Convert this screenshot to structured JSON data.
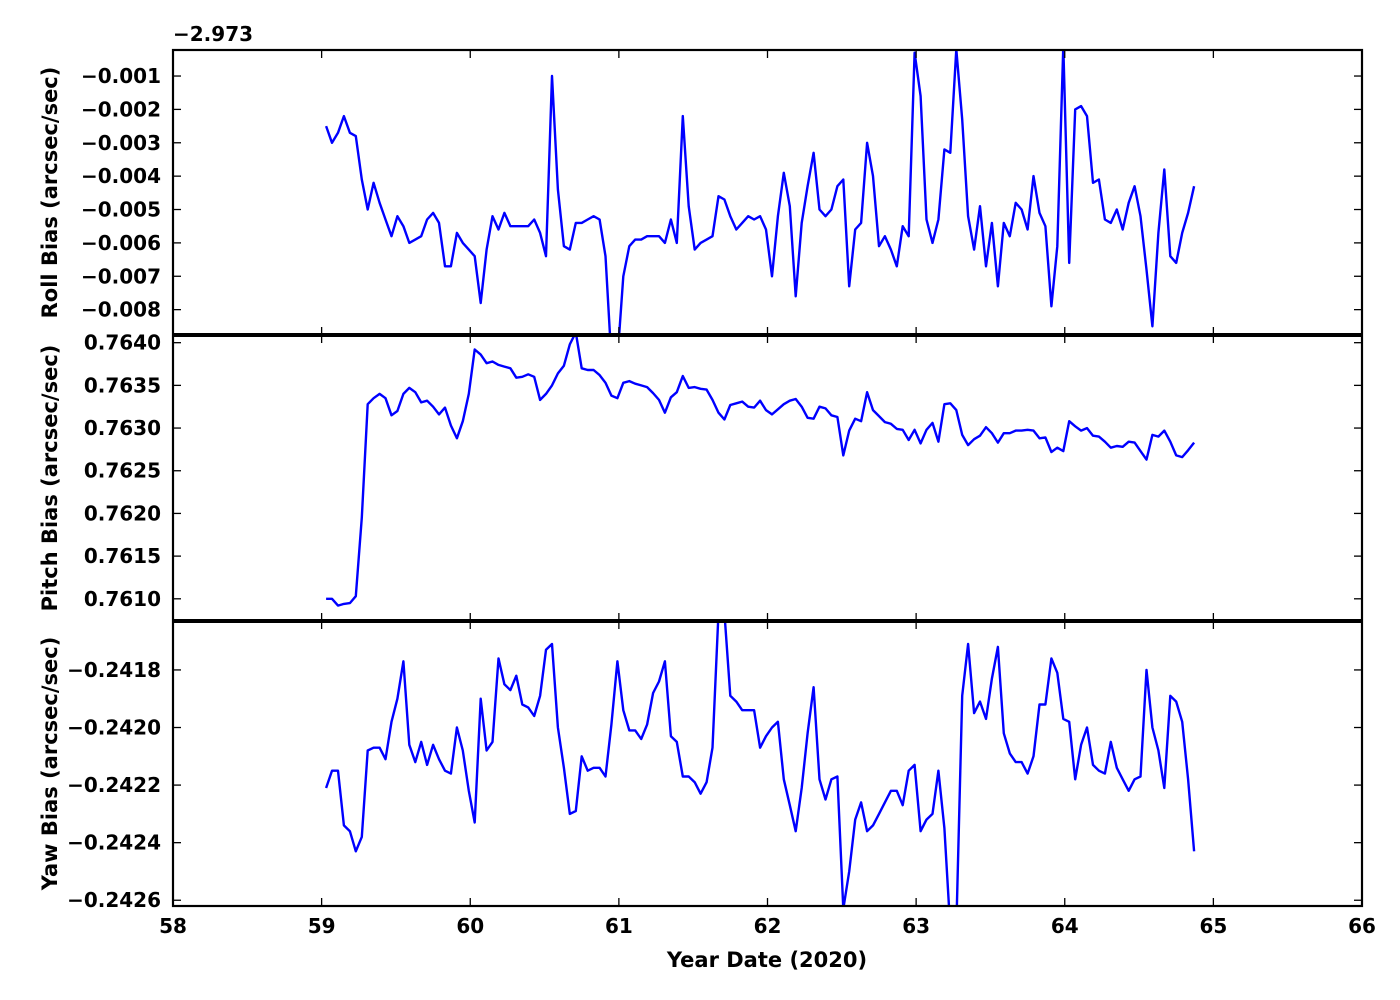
{
  "chart_data": {
    "type": "line",
    "layout": "stacked-panels-shared-x",
    "line_color": "#0000ff",
    "xlabel": "Year Date (2020)",
    "xlim": [
      58,
      66
    ],
    "xticks": [
      58,
      59,
      60,
      61,
      62,
      63,
      64,
      65,
      66
    ],
    "x": [
      59.03,
      59.07,
      59.11,
      59.15,
      59.19,
      59.23,
      59.27,
      59.31,
      59.35,
      59.39,
      59.43,
      59.47,
      59.51,
      59.55,
      59.59,
      59.63,
      59.67,
      59.71,
      59.75,
      59.79,
      59.83,
      59.87,
      59.91,
      59.95,
      59.99,
      60.03,
      60.07,
      60.11,
      60.15,
      60.19,
      60.23,
      60.27,
      60.31,
      60.35,
      60.39,
      60.43,
      60.47,
      60.51,
      60.55,
      60.59,
      60.63,
      60.67,
      60.71,
      60.75,
      60.79,
      60.83,
      60.87,
      60.91,
      60.95,
      60.99,
      61.03,
      61.07,
      61.11,
      61.15,
      61.19,
      61.23,
      61.27,
      61.31,
      61.35,
      61.39,
      61.43,
      61.47,
      61.51,
      61.55,
      61.59,
      61.63,
      61.67,
      61.71,
      61.75,
      61.79,
      61.83,
      61.87,
      61.91,
      61.95,
      61.99,
      62.03,
      62.07,
      62.11,
      62.15,
      62.19,
      62.23,
      62.27,
      62.31,
      62.35,
      62.39,
      62.43,
      62.47,
      62.51,
      62.55,
      62.59,
      62.63,
      62.67,
      62.71,
      62.75,
      62.79,
      62.83,
      62.87,
      62.91,
      62.95,
      62.99,
      63.03,
      63.07,
      63.11,
      63.15,
      63.19,
      63.23,
      63.27,
      63.31,
      63.35,
      63.39,
      63.43,
      63.47,
      63.51,
      63.55,
      63.59,
      63.63,
      63.67,
      63.71,
      63.75,
      63.79,
      63.83,
      63.87,
      63.91,
      63.95,
      63.99,
      64.03,
      64.07,
      64.11,
      64.15,
      64.19,
      64.23,
      64.27,
      64.31,
      64.35,
      64.39,
      64.43,
      64.47,
      64.51,
      64.55,
      64.59,
      64.63,
      64.67,
      64.71,
      64.75,
      64.79,
      64.83,
      64.87,
      64.91,
      64.95,
      64.99,
      65.03,
      65.07,
      65.11
    ],
    "panels": [
      {
        "name": "roll",
        "ylabel": "Roll Bias (arcsec/sec)",
        "offset_label": "−2.973",
        "ylim": [
          -0.00876,
          -0.00022
        ],
        "yticks": [
          -0.001,
          -0.002,
          -0.003,
          -0.004,
          -0.005,
          -0.006,
          -0.007,
          -0.008
        ],
        "ytick_labels": [
          "−0.001",
          "−0.002",
          "−0.003",
          "−0.004",
          "−0.005",
          "−0.006",
          "−0.007",
          "−0.008"
        ],
        "values": [
          -0.0025,
          -0.003,
          -0.0027,
          -0.0022,
          -0.0027,
          -0.0028,
          -0.0041,
          -0.005,
          -0.0042,
          -0.0048,
          -0.0053,
          -0.0058,
          -0.0052,
          -0.0055,
          -0.006,
          -0.0059,
          -0.0058,
          -0.0053,
          -0.0051,
          -0.0054,
          -0.0067,
          -0.0067,
          -0.0057,
          -0.006,
          -0.0062,
          -0.0064,
          -0.0078,
          -0.0062,
          -0.0052,
          -0.0056,
          -0.0051,
          -0.0055,
          -0.0055,
          -0.0055,
          -0.0055,
          -0.0053,
          -0.0057,
          -0.0064,
          -0.001,
          -0.0044,
          -0.0061,
          -0.0062,
          -0.0054,
          -0.0054,
          -0.0053,
          -0.0052,
          -0.0053,
          -0.0064,
          -0.0095,
          -0.0095,
          -0.007,
          -0.0061,
          -0.0059,
          -0.0059,
          -0.0058,
          -0.0058,
          -0.0058,
          -0.006,
          -0.0053,
          -0.006,
          -0.0022,
          -0.0049,
          -0.0062,
          -0.006,
          -0.0059,
          -0.0058,
          -0.0046,
          -0.0047,
          -0.0052,
          -0.0056,
          -0.0054,
          -0.0052,
          -0.0053,
          -0.0052,
          -0.0056,
          -0.007,
          -0.0052,
          -0.0039,
          -0.0049,
          -0.0076,
          -0.0054,
          -0.0043,
          -0.0033,
          -0.005,
          -0.0052,
          -0.005,
          -0.0043,
          -0.0041,
          -0.0073,
          -0.0056,
          -0.0054,
          -0.003,
          -0.004,
          -0.0061,
          -0.0058,
          -0.0062,
          -0.0067,
          -0.0055,
          -0.0058,
          -0.0003,
          -0.0016,
          -0.0053,
          -0.006,
          -0.0053,
          -0.0032,
          -0.0033,
          -0.0002,
          -0.0023,
          -0.0052,
          -0.0062,
          -0.0049,
          -0.0067,
          -0.0054,
          -0.0073,
          -0.0054,
          -0.0058,
          -0.0048,
          -0.005,
          -0.0056,
          -0.004,
          -0.0051,
          -0.0055,
          -0.0079,
          -0.0061,
          -0.0001,
          -0.0066,
          -0.002,
          -0.0019,
          -0.0022,
          -0.0042,
          -0.0041,
          -0.0053,
          -0.0054,
          -0.005,
          -0.0056,
          -0.0048,
          -0.0043,
          -0.0052,
          -0.0068,
          -0.0085,
          -0.0057,
          -0.0038,
          -0.0064,
          -0.0066,
          -0.0057,
          -0.0051,
          -0.0043
        ]
      },
      {
        "name": "pitch",
        "ylabel": "Pitch Bias (arcsec/sec)",
        "ylim": [
          0.76074,
          0.76409
        ],
        "yticks": [
          0.761,
          0.7615,
          0.762,
          0.7625,
          0.763,
          0.7635,
          0.764
        ],
        "ytick_labels": [
          "0.7610",
          "0.7615",
          "0.7620",
          "0.7625",
          "0.7630",
          "0.7635",
          "0.7640"
        ],
        "values": [
          0.761,
          0.761,
          0.76092,
          0.76094,
          0.76095,
          0.76103,
          0.76195,
          0.76328,
          0.76335,
          0.7634,
          0.76335,
          0.76315,
          0.7632,
          0.7634,
          0.76347,
          0.76342,
          0.7633,
          0.76332,
          0.76325,
          0.76316,
          0.76324,
          0.76303,
          0.76288,
          0.76308,
          0.7634,
          0.76392,
          0.76386,
          0.76376,
          0.76378,
          0.76374,
          0.76372,
          0.7637,
          0.76359,
          0.7636,
          0.76363,
          0.7636,
          0.76333,
          0.7634,
          0.7635,
          0.76364,
          0.76373,
          0.76398,
          0.76412,
          0.7637,
          0.76368,
          0.76368,
          0.76362,
          0.76353,
          0.76338,
          0.76335,
          0.76353,
          0.76355,
          0.76352,
          0.7635,
          0.76348,
          0.76341,
          0.76333,
          0.76318,
          0.76336,
          0.76342,
          0.76361,
          0.76347,
          0.76348,
          0.76346,
          0.76345,
          0.76333,
          0.76318,
          0.7631,
          0.76327,
          0.76329,
          0.76331,
          0.76325,
          0.76324,
          0.76332,
          0.76321,
          0.76316,
          0.76322,
          0.76328,
          0.76332,
          0.76334,
          0.76325,
          0.76312,
          0.76311,
          0.76325,
          0.76323,
          0.76315,
          0.76313,
          0.76268,
          0.76297,
          0.76311,
          0.76308,
          0.76342,
          0.76321,
          0.76314,
          0.76307,
          0.76305,
          0.76299,
          0.76298,
          0.76286,
          0.76298,
          0.76282,
          0.76298,
          0.76306,
          0.76284,
          0.76328,
          0.76329,
          0.76321,
          0.76292,
          0.7628,
          0.76287,
          0.76291,
          0.76301,
          0.76294,
          0.76283,
          0.76294,
          0.76294,
          0.76297,
          0.76297,
          0.76298,
          0.76297,
          0.76288,
          0.76289,
          0.76272,
          0.76277,
          0.76273,
          0.76308,
          0.76302,
          0.76297,
          0.763,
          0.76291,
          0.7629,
          0.76284,
          0.76277,
          0.76279,
          0.76278,
          0.76284,
          0.76283,
          0.76273,
          0.76263,
          0.76292,
          0.7629,
          0.76297,
          0.76284,
          0.76268,
          0.76266,
          0.76274,
          0.76283
        ]
      },
      {
        "name": "yaw",
        "ylabel": "Yaw Bias (arcsec/sec)",
        "ylim": [
          -0.24262,
          -0.24163
        ],
        "yticks": [
          -0.2418,
          -0.242,
          -0.2422,
          -0.2424,
          -0.2426
        ],
        "ytick_labels": [
          "−0.2418",
          "−0.2420",
          "−0.2422",
          "−0.2424",
          "−0.2426"
        ],
        "values": [
          -0.24221,
          -0.24215,
          -0.24215,
          -0.24234,
          -0.24236,
          -0.24243,
          -0.24238,
          -0.24208,
          -0.24207,
          -0.24207,
          -0.24211,
          -0.24198,
          -0.2419,
          -0.24177,
          -0.24206,
          -0.24212,
          -0.24205,
          -0.24213,
          -0.24206,
          -0.24211,
          -0.24215,
          -0.24216,
          -0.242,
          -0.24208,
          -0.24222,
          -0.24233,
          -0.2419,
          -0.24208,
          -0.24205,
          -0.24176,
          -0.24185,
          -0.24187,
          -0.24182,
          -0.24192,
          -0.24193,
          -0.24196,
          -0.24189,
          -0.24173,
          -0.24171,
          -0.242,
          -0.24214,
          -0.2423,
          -0.24229,
          -0.2421,
          -0.24215,
          -0.24214,
          -0.24214,
          -0.24217,
          -0.24199,
          -0.24177,
          -0.24194,
          -0.24201,
          -0.24201,
          -0.24204,
          -0.24199,
          -0.24188,
          -0.24184,
          -0.24177,
          -0.24203,
          -0.24205,
          -0.24217,
          -0.24217,
          -0.24219,
          -0.24223,
          -0.24219,
          -0.24207,
          -0.2416,
          -0.2416,
          -0.24189,
          -0.24191,
          -0.24194,
          -0.24194,
          -0.24194,
          -0.24207,
          -0.24203,
          -0.242,
          -0.24198,
          -0.24218,
          -0.24227,
          -0.24236,
          -0.24221,
          -0.24202,
          -0.24186,
          -0.24218,
          -0.24225,
          -0.24218,
          -0.24217,
          -0.24263,
          -0.2425,
          -0.24232,
          -0.24226,
          -0.24236,
          -0.24234,
          -0.2423,
          -0.24226,
          -0.24222,
          -0.24222,
          -0.24227,
          -0.24215,
          -0.24213,
          -0.24236,
          -0.24232,
          -0.2423,
          -0.24215,
          -0.24235,
          -0.2427,
          -0.2427,
          -0.24189,
          -0.24171,
          -0.24195,
          -0.24191,
          -0.24197,
          -0.24183,
          -0.24172,
          -0.24202,
          -0.24209,
          -0.24212,
          -0.24212,
          -0.24216,
          -0.2421,
          -0.24192,
          -0.24192,
          -0.24176,
          -0.24181,
          -0.24197,
          -0.24198,
          -0.24218,
          -0.24206,
          -0.242,
          -0.24213,
          -0.24215,
          -0.24216,
          -0.24205,
          -0.24214,
          -0.24218,
          -0.24222,
          -0.24218,
          -0.24217,
          -0.2418,
          -0.242,
          -0.24208,
          -0.24221,
          -0.24189,
          -0.24191,
          -0.24198,
          -0.24218,
          -0.24243
        ]
      }
    ]
  }
}
